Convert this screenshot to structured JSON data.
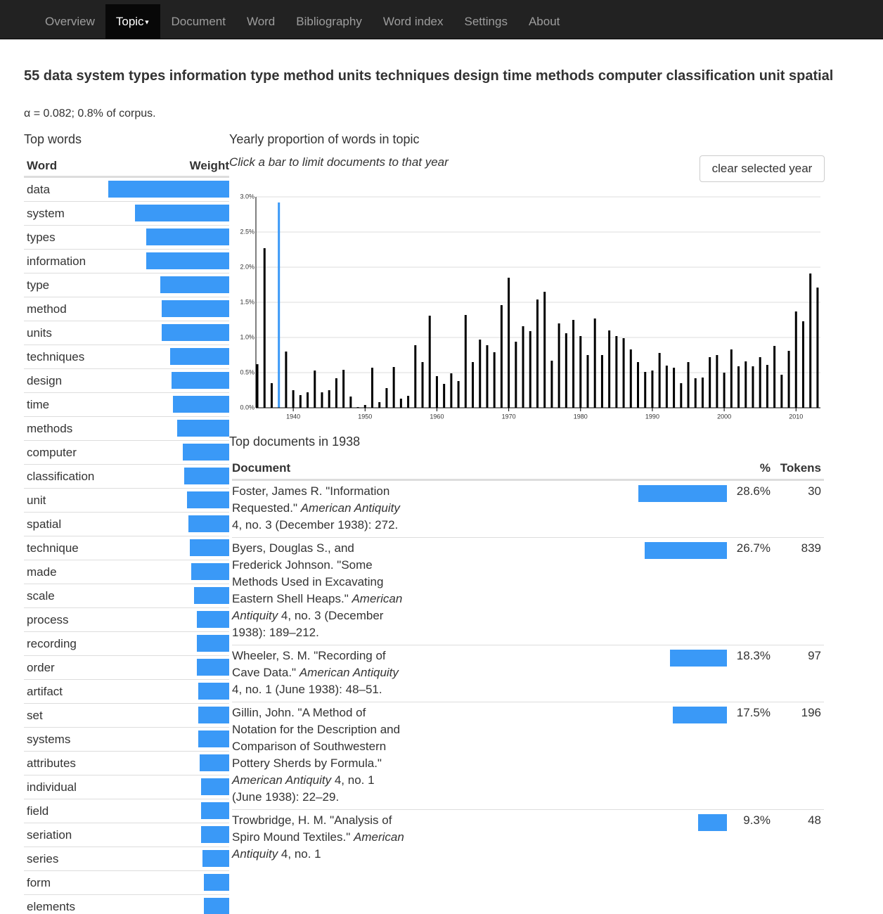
{
  "nav": {
    "items": [
      {
        "label": "Overview"
      },
      {
        "label": "Topic",
        "active": true,
        "caret": true
      },
      {
        "label": "Document"
      },
      {
        "label": "Word"
      },
      {
        "label": "Bibliography"
      },
      {
        "label": "Word index"
      },
      {
        "label": "Settings"
      },
      {
        "label": "About"
      }
    ]
  },
  "topic": {
    "title": "55 data system types information type method units techniques design time methods computer classification unit spatial",
    "subtitle": "α = 0.082; 0.8% of corpus."
  },
  "top_words": {
    "heading": "Top words",
    "columns": [
      "Word",
      "Weight"
    ],
    "bar_color": "#3a99f7",
    "rows": [
      {
        "word": "data",
        "weight": 172
      },
      {
        "word": "system",
        "weight": 134
      },
      {
        "word": "types",
        "weight": 118
      },
      {
        "word": "information",
        "weight": 118
      },
      {
        "word": "type",
        "weight": 98
      },
      {
        "word": "method",
        "weight": 96
      },
      {
        "word": "units",
        "weight": 96
      },
      {
        "word": "techniques",
        "weight": 84
      },
      {
        "word": "design",
        "weight": 82
      },
      {
        "word": "time",
        "weight": 80
      },
      {
        "word": "methods",
        "weight": 74
      },
      {
        "word": "computer",
        "weight": 66
      },
      {
        "word": "classification",
        "weight": 64
      },
      {
        "word": "unit",
        "weight": 60
      },
      {
        "word": "spatial",
        "weight": 58
      },
      {
        "word": "technique",
        "weight": 56
      },
      {
        "word": "made",
        "weight": 54
      },
      {
        "word": "scale",
        "weight": 50
      },
      {
        "word": "process",
        "weight": 46
      },
      {
        "word": "recording",
        "weight": 46
      },
      {
        "word": "order",
        "weight": 46
      },
      {
        "word": "artifact",
        "weight": 44
      },
      {
        "word": "set",
        "weight": 44
      },
      {
        "word": "systems",
        "weight": 44
      },
      {
        "word": "attributes",
        "weight": 42
      },
      {
        "word": "individual",
        "weight": 40
      },
      {
        "word": "field",
        "weight": 40
      },
      {
        "word": "seriation",
        "weight": 40
      },
      {
        "word": "series",
        "weight": 38
      },
      {
        "word": "form",
        "weight": 36
      },
      {
        "word": "elements",
        "weight": 36
      }
    ]
  },
  "controls": {
    "clear_button": "clear selected year"
  },
  "chart_data": {
    "type": "bar",
    "title": "Yearly proportion of words in topic",
    "subtitle": "Click a bar to limit documents to that year",
    "color": "#000000",
    "selected_x": 1938,
    "selected_color": "#3a99f7",
    "grid": true,
    "x": [
      1935,
      1936,
      1937,
      1938,
      1939,
      1940,
      1941,
      1942,
      1943,
      1944,
      1945,
      1946,
      1947,
      1948,
      1949,
      1950,
      1951,
      1952,
      1953,
      1954,
      1955,
      1956,
      1957,
      1958,
      1959,
      1960,
      1961,
      1962,
      1963,
      1964,
      1965,
      1966,
      1967,
      1968,
      1969,
      1970,
      1971,
      1972,
      1973,
      1974,
      1975,
      1976,
      1977,
      1978,
      1979,
      1980,
      1981,
      1982,
      1983,
      1984,
      1985,
      1986,
      1987,
      1988,
      1989,
      1990,
      1991,
      1992,
      1993,
      1994,
      1995,
      1996,
      1997,
      1998,
      1999,
      2000,
      2001,
      2002,
      2003,
      2004,
      2005,
      2006,
      2007,
      2008,
      2009,
      2010,
      2011,
      2012,
      2013
    ],
    "values": [
      0.62,
      2.27,
      0.35,
      2.92,
      0.8,
      0.25,
      0.18,
      0.22,
      0.53,
      0.22,
      0.25,
      0.42,
      0.54,
      0.16,
      0.01,
      0.04,
      0.57,
      0.08,
      0.28,
      0.58,
      0.13,
      0.17,
      0.89,
      0.65,
      1.31,
      0.45,
      0.34,
      0.49,
      0.38,
      1.32,
      0.65,
      0.97,
      0.89,
      0.79,
      1.46,
      1.85,
      0.94,
      1.16,
      1.09,
      1.54,
      1.65,
      0.67,
      1.2,
      1.06,
      1.25,
      1.02,
      0.75,
      1.27,
      0.75,
      1.1,
      1.02,
      0.99,
      0.83,
      0.65,
      0.51,
      0.53,
      0.78,
      0.6,
      0.57,
      0.35,
      0.65,
      0.42,
      0.43,
      0.72,
      0.75,
      0.5,
      0.83,
      0.59,
      0.66,
      0.59,
      0.72,
      0.61,
      0.88,
      0.47,
      0.81,
      1.37,
      1.23,
      1.91,
      1.71
    ],
    "xlim": [
      1934.8,
      2013.4
    ],
    "xticks": [
      1940,
      1950,
      1960,
      1970,
      1980,
      1990,
      2000,
      2010
    ],
    "ylim": [
      0,
      3
    ],
    "yticks": [
      {
        "value": 0,
        "label": "0.0%"
      },
      {
        "value": 0.5,
        "label": "0.5%"
      },
      {
        "value": 1,
        "label": "1.0%"
      },
      {
        "value": 1.5,
        "label": "1.5%"
      },
      {
        "value": 2,
        "label": "2.0%"
      },
      {
        "value": 2.5,
        "label": "2.5%"
      },
      {
        "value": 3,
        "label": "3.0%"
      }
    ]
  },
  "top_documents": {
    "heading": "Top documents in 1938",
    "columns": [
      "Document",
      "%",
      "Tokens"
    ],
    "bar_color": "#3a99f7",
    "rows": [
      {
        "document": [
          "Foster, James R. \"Information Requested.\" ",
          "American Antiquity",
          " 4, no. 3 (December 1938): 272."
        ],
        "percent": 28.6,
        "percent_label": "28.6%",
        "tokens": 30
      },
      {
        "document": [
          "Byers, Douglas S., and Frederick Johnson. \"Some Methods Used in Excavating Eastern Shell Heaps.\" ",
          "American Antiquity",
          " 4, no. 3 (December 1938): 189–212."
        ],
        "percent": 26.7,
        "percent_label": "26.7%",
        "tokens": 839
      },
      {
        "document": [
          "Wheeler, S. M. \"Recording of Cave Data.\" ",
          "American Antiquity",
          " 4, no. 1 (June 1938): 48–51."
        ],
        "percent": 18.3,
        "percent_label": "18.3%",
        "tokens": 97
      },
      {
        "document": [
          "Gillin, John. \"A Method of Notation for the Description and Comparison of Southwestern Pottery Sherds by Formula.\" ",
          "American Antiquity",
          " 4, no. 1 (June 1938): 22–29."
        ],
        "percent": 17.5,
        "percent_label": "17.5%",
        "tokens": 196
      },
      {
        "document": [
          "Trowbridge, H. M. \"Analysis of Spiro Mound Textiles.\" ",
          "American Antiquity",
          " 4, no. 1"
        ],
        "percent": 9.3,
        "percent_label": "9.3%",
        "tokens": 48
      }
    ]
  }
}
